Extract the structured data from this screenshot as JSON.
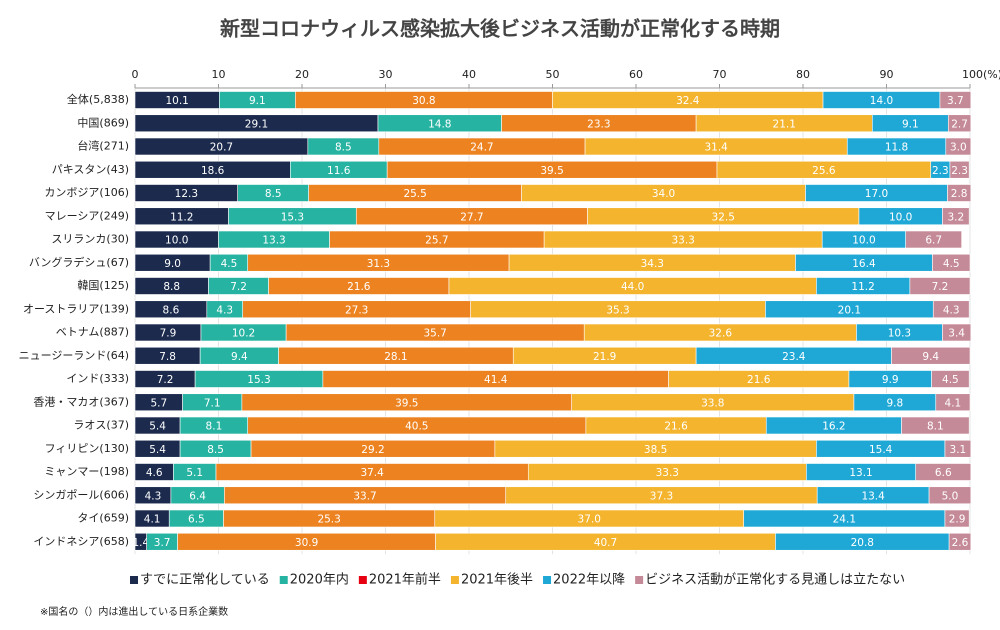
{
  "chart_data": {
    "type": "stacked-barh",
    "title": "新型コロナウィルス感染拡大後ビジネス活動が正常化する時期",
    "categories": [
      "全体(5,838)",
      "中国(869)",
      "台湾(271)",
      "パキスタン(43)",
      "カンボジア(106)",
      "マレーシア(249)",
      "スリランカ(30)",
      "バングラデシュ(67)",
      "韓国(125)",
      "オーストラリア(139)",
      "ベトナム(887)",
      "ニュージーランド(64)",
      "インド(333)",
      "香港・マカオ(367)",
      "ラオス(37)",
      "フィリピン(130)",
      "ミャンマー(198)",
      "シンガポール(606)",
      "タイ(659)",
      "インドネシア(658)"
    ],
    "series": [
      {
        "name": "すでに正常化している",
        "color": "#1c2b4d",
        "values": [
          10.1,
          29.1,
          20.7,
          18.6,
          12.3,
          11.2,
          10.0,
          9.0,
          8.8,
          8.6,
          7.9,
          7.8,
          7.2,
          5.7,
          5.4,
          5.4,
          4.6,
          4.3,
          4.1,
          1.4
        ],
        "value_labels": [
          "10.1",
          "29.1",
          "20.7",
          "18.6",
          "12.3",
          "11.2",
          "10.0",
          "9.0",
          "8.8",
          "8.6",
          "7.9",
          "7.8",
          "7.2",
          "5.7",
          "5.4",
          "5.4",
          "4.6",
          "4.3",
          "4.1",
          "1.4"
        ]
      },
      {
        "name": "2020年内",
        "color": "#26b3a1",
        "values": [
          9.1,
          14.8,
          8.5,
          11.6,
          8.5,
          15.3,
          13.3,
          4.5,
          7.2,
          4.3,
          10.2,
          9.4,
          15.3,
          7.1,
          8.1,
          8.5,
          5.1,
          6.4,
          6.5,
          3.7
        ],
        "value_labels": [
          "9.1",
          "14.8",
          "8.5",
          "11.6",
          "8.5",
          "15.3",
          "13.3",
          "4.5",
          "7.2",
          "4.3",
          "10.2",
          "9.4",
          "15.3",
          "7.1",
          "8.1",
          "8.5",
          "5.1",
          "6.4",
          "6.5",
          "3.7"
        ]
      },
      {
        "name": "2021年前半",
        "color": "#ec8220",
        "legend_color": "#e60012",
        "values": [
          30.8,
          23.3,
          24.7,
          39.5,
          25.5,
          27.7,
          25.7,
          31.3,
          21.6,
          27.3,
          35.7,
          28.1,
          41.4,
          39.5,
          40.5,
          29.2,
          37.4,
          33.7,
          25.3,
          30.9
        ],
        "value_labels": [
          "30.8",
          "23.3",
          "24.7",
          "39.5",
          "25.5",
          "27.7",
          "25.7",
          "31.3",
          "21.6",
          "27.3",
          "35.7",
          "28.1",
          "41.4",
          "39.5",
          "40.5",
          "29.2",
          "37.4",
          "33.7",
          "25.3",
          "30.9"
        ]
      },
      {
        "name": "2021年後半",
        "color": "#f4b42e",
        "values": [
          32.4,
          21.1,
          31.4,
          25.6,
          34.0,
          32.5,
          33.3,
          34.3,
          44.0,
          35.3,
          32.6,
          21.9,
          21.6,
          33.8,
          21.6,
          38.5,
          33.3,
          37.3,
          37.0,
          40.7
        ],
        "value_labels": [
          "32.4",
          "21.1",
          "31.4",
          "25.6",
          "34.0",
          "32.5",
          "33.3",
          "34.3",
          "44.0",
          "35.3",
          "32.6",
          "21.9",
          "21.6",
          "33.8",
          "21.6",
          "38.5",
          "33.3",
          "37.3",
          "37.0",
          "40.7"
        ]
      },
      {
        "name": "2022年以降",
        "color": "#1fa8d6",
        "values": [
          14.0,
          9.1,
          11.8,
          2.3,
          17.0,
          10.0,
          10.0,
          16.4,
          11.2,
          20.1,
          10.3,
          23.4,
          9.9,
          9.8,
          16.2,
          15.4,
          13.1,
          13.4,
          24.1,
          20.8
        ],
        "value_labels": [
          "14.0",
          "9.1",
          "11.8",
          "2.3",
          "17.0",
          "10.0",
          "10.0",
          "16.4",
          "11.2",
          "20.1",
          "10.3",
          "23.4",
          "9.9",
          "9.8",
          "16.2",
          "15.4",
          "13.1",
          "13.4",
          "24.1",
          "20.8"
        ]
      },
      {
        "name": "ビジネス活動が正常化する見通しは立たない",
        "color": "#c58a98",
        "values": [
          3.7,
          2.7,
          3.0,
          2.3,
          2.8,
          3.2,
          6.7,
          4.5,
          7.2,
          4.3,
          3.4,
          9.4,
          4.5,
          4.1,
          8.1,
          3.1,
          6.6,
          5.0,
          2.9,
          2.6
        ],
        "value_labels": [
          "3.7",
          "2.7",
          "3.0",
          "2.3",
          "2.8",
          "3.2",
          "6.7",
          "4.5",
          "7.2",
          "4.3",
          "3.4",
          "9.4",
          "4.5",
          "4.1",
          "8.1",
          "3.1",
          "6.6",
          "5.0",
          "2.9",
          "2.6"
        ]
      }
    ],
    "xlim": [
      0,
      100
    ],
    "xticks": [
      0,
      10,
      20,
      30,
      40,
      50,
      60,
      70,
      80,
      90,
      {
        "value": 100,
        "label": "100(%)"
      }
    ],
    "grid": true,
    "footnote": "※国名の（）内は進出している日系企業数"
  }
}
